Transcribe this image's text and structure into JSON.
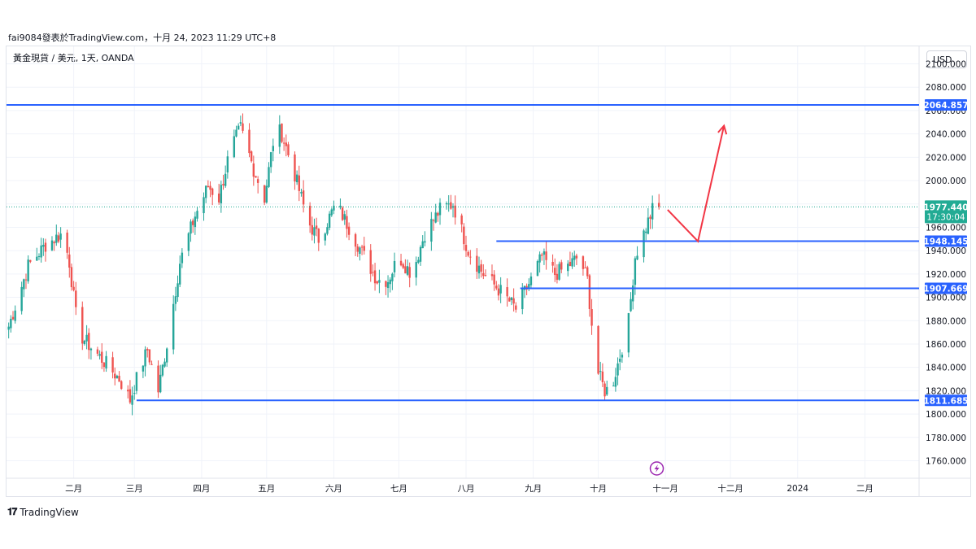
{
  "header": {
    "author_line": "fai9084發表於TradingView.com，十月 24, 2023 11:29 UTC+8"
  },
  "symbol_line": "黃金現貨 / 美元, 1天, OANDA",
  "currency_button": "USD",
  "footer": {
    "brand": "TradingView",
    "logo": "tv-logo-icon"
  },
  "colors": {
    "up": "#26a69a",
    "down": "#ef5350",
    "level_line": "#2962ff",
    "arrow": "#f23645",
    "last_price_bg": "#22ab94",
    "grid": "#f0f3fa",
    "event_icon": "#9c27b0"
  },
  "chart_data": {
    "type": "candlestick",
    "title": "",
    "xlabel": "",
    "ylabel": "",
    "ylim": [
      1745,
      2115
    ],
    "y_ticks": [
      2100,
      2080,
      2060,
      2040,
      2020,
      2000,
      1980,
      1960,
      1940,
      1920,
      1900,
      1880,
      1860,
      1840,
      1820,
      1800,
      1780,
      1760
    ],
    "y_tick_labels": [
      "2100.000",
      "2080.000",
      "2060.000",
      "2040.000",
      "2020.000",
      "2000.000",
      "1980.000",
      "1960.000",
      "1940.000",
      "1920.000",
      "1900.000",
      "1880.000",
      "1860.000",
      "1840.000",
      "1820.000",
      "1800.000",
      "1780.000",
      "1760.000"
    ],
    "x_labels": [
      {
        "label": "二月",
        "day": 31
      },
      {
        "label": "三月",
        "day": 59
      },
      {
        "label": "四月",
        "day": 90
      },
      {
        "label": "五月",
        "day": 120
      },
      {
        "label": "六月",
        "day": 151
      },
      {
        "label": "七月",
        "day": 181
      },
      {
        "label": "八月",
        "day": 212
      },
      {
        "label": "九月",
        "day": 243
      },
      {
        "label": "十月",
        "day": 273
      },
      {
        "label": "十一月",
        "day": 304
      },
      {
        "label": "十二月",
        "day": 334
      },
      {
        "label": "2024",
        "day": 365
      },
      {
        "label": "二月",
        "day": 396
      }
    ],
    "start_day": 0,
    "end_day": 421,
    "anchors": [
      [
        1,
        1875
      ],
      [
        5,
        1898
      ],
      [
        10,
        1927
      ],
      [
        18,
        1945
      ],
      [
        26,
        1955
      ],
      [
        29,
        1930
      ],
      [
        33,
        1870
      ],
      [
        40,
        1855
      ],
      [
        45,
        1845
      ],
      [
        52,
        1830
      ],
      [
        57,
        1812
      ],
      [
        60,
        1830
      ],
      [
        65,
        1855
      ],
      [
        70,
        1820
      ],
      [
        74,
        1860
      ],
      [
        80,
        1930
      ],
      [
        87,
        1970
      ],
      [
        93,
        1995
      ],
      [
        98,
        1985
      ],
      [
        103,
        2025
      ],
      [
        108,
        2045
      ],
      [
        114,
        2010
      ],
      [
        119,
        1985
      ],
      [
        124,
        2045
      ],
      [
        127,
        2040
      ],
      [
        133,
        2005
      ],
      [
        139,
        1965
      ],
      [
        144,
        1950
      ],
      [
        152,
        1980
      ],
      [
        158,
        1960
      ],
      [
        165,
        1935
      ],
      [
        171,
        1915
      ],
      [
        176,
        1915
      ],
      [
        181,
        1935
      ],
      [
        187,
        1920
      ],
      [
        193,
        1955
      ],
      [
        200,
        1975
      ],
      [
        206,
        1980
      ],
      [
        213,
        1940
      ],
      [
        220,
        1920
      ],
      [
        228,
        1905
      ],
      [
        235,
        1890
      ],
      [
        242,
        1915
      ],
      [
        247,
        1935
      ],
      [
        253,
        1920
      ],
      [
        258,
        1925
      ],
      [
        264,
        1935
      ],
      [
        268,
        1915
      ],
      [
        272,
        1840
      ],
      [
        276,
        1820
      ],
      [
        279,
        1822
      ],
      [
        283,
        1850
      ],
      [
        287,
        1880
      ],
      [
        290,
        1935
      ],
      [
        294,
        1955
      ],
      [
        298,
        1975
      ],
      [
        301,
        1975
      ]
    ],
    "last_price": {
      "value": 1977.44,
      "label": "1977.440",
      "countdown": "17:30:04"
    },
    "horizontal_levels": [
      {
        "value": 2064.857,
        "label": "2064.857",
        "from_day": 0
      },
      {
        "value": 1948.145,
        "label": "1948.145",
        "from_day": 226
      },
      {
        "value": 1907.669,
        "label": "1907.669",
        "from_day": 237
      },
      {
        "value": 1811.685,
        "label": "1811.685",
        "from_day": 60
      }
    ],
    "projection_arrow": [
      [
        305,
        1975
      ],
      [
        319,
        1948
      ],
      [
        331,
        2047
      ]
    ],
    "event_marker": {
      "day": 300,
      "icon": "lightning-icon"
    }
  }
}
